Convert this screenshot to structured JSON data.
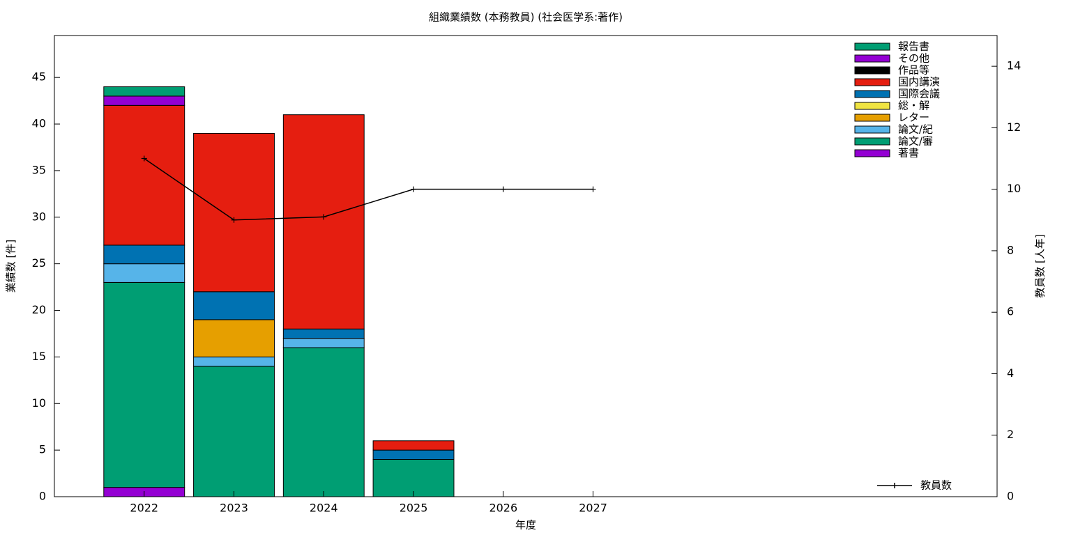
{
  "chart_data": {
    "type": "bar",
    "stacked": true,
    "title": "組織業績数 (本務教員) (社会医学系:著作)",
    "x_label": "年度",
    "y_label": "業績数 [件]",
    "y2_label": "教員数 [人年]",
    "x": [
      2022,
      2023,
      2024,
      2025,
      2026,
      2027
    ],
    "xlim": [
      2021,
      2031.5
    ],
    "xticks": [
      2022,
      2023,
      2024,
      2025,
      2026,
      2027
    ],
    "ylim": [
      0,
      49.5
    ],
    "yticks": [
      0,
      5,
      10,
      15,
      20,
      25,
      30,
      35,
      40,
      45
    ],
    "y2lim": [
      0,
      15
    ],
    "y2ticks": [
      0,
      2,
      4,
      6,
      8,
      10,
      12,
      14
    ],
    "legend": "upper right",
    "line_legend": "lower right",
    "grid": false,
    "series": [
      {
        "name": "著書",
        "color": "#9400d3",
        "values": [
          1,
          0,
          0,
          0,
          0,
          0
        ]
      },
      {
        "name": "論文/審",
        "color": "#009e73",
        "values": [
          22,
          14,
          16,
          4,
          0,
          0
        ]
      },
      {
        "name": "論文/紀",
        "color": "#56b4e9",
        "values": [
          2,
          1,
          1,
          0,
          0,
          0
        ]
      },
      {
        "name": "レター",
        "color": "#e69f00",
        "values": [
          0,
          4,
          0,
          0,
          0,
          0
        ]
      },
      {
        "name": "総・解",
        "color": "#f0e442",
        "values": [
          0,
          0,
          0,
          0,
          0,
          0
        ]
      },
      {
        "name": "国際会議",
        "color": "#0072b2",
        "values": [
          2,
          3,
          1,
          1,
          0,
          0
        ]
      },
      {
        "name": "国内講演",
        "color": "#e51e10",
        "values": [
          15,
          17,
          23,
          1,
          0,
          0
        ]
      },
      {
        "name": "作品等",
        "color": "#000000",
        "values": [
          0,
          0,
          0,
          0,
          0,
          0
        ]
      },
      {
        "name": "その他",
        "color": "#9400d3",
        "values": [
          1,
          0,
          0,
          0,
          0,
          0
        ]
      },
      {
        "name": "報告書",
        "color": "#009e73",
        "values": [
          1,
          0,
          0,
          0,
          0,
          0
        ]
      },
      {
        "name": "教員数",
        "type": "line",
        "axis": "y2",
        "color": "#000000",
        "values": [
          11,
          9,
          9.1,
          10,
          10,
          10
        ]
      }
    ]
  }
}
